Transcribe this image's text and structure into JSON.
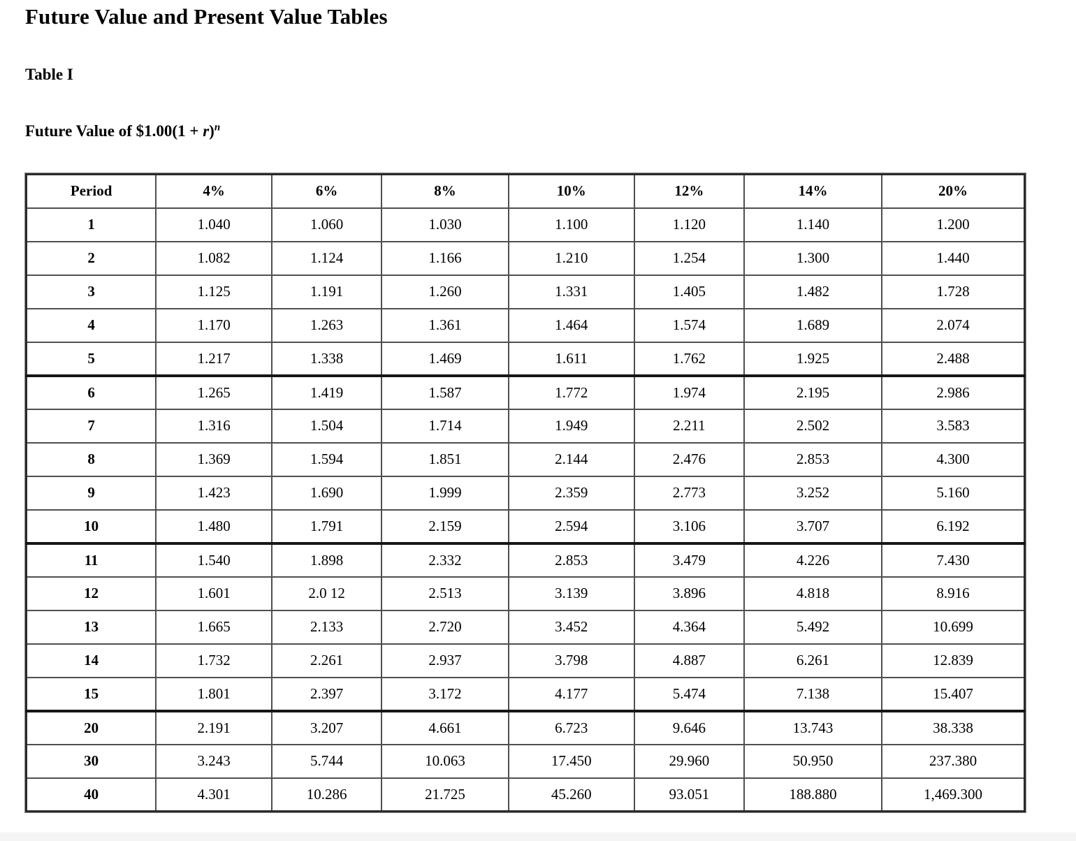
{
  "page": {
    "title": "Future Value and Present Value Tables",
    "table_label": "Table I",
    "formula": {
      "prefix": "Future Value of $1.00(1 + ",
      "variable": "r",
      "suffix": ")",
      "exponent": "n"
    }
  },
  "table": {
    "columns": [
      "Period",
      "4%",
      "6%",
      "8%",
      "10%",
      "12%",
      "14%",
      "20%"
    ],
    "rows": [
      {
        "period": "1",
        "values": [
          "1.040",
          "1.060",
          "1.030",
          "1.100",
          "1.120",
          "1.140",
          "1.200"
        ]
      },
      {
        "period": "2",
        "values": [
          "1.082",
          "1.124",
          "1.166",
          "1.210",
          "1.254",
          "1.300",
          "1.440"
        ]
      },
      {
        "period": "3",
        "values": [
          "1.125",
          "1.191",
          "1.260",
          "1.331",
          "1.405",
          "1.482",
          "1.728"
        ]
      },
      {
        "period": "4",
        "values": [
          "1.170",
          "1.263",
          "1.361",
          "1.464",
          "1.574",
          "1.689",
          "2.074"
        ]
      },
      {
        "period": "5",
        "values": [
          "1.217",
          "1.338",
          "1.469",
          "1.611",
          "1.762",
          "1.925",
          "2.488"
        ]
      },
      {
        "period": "6",
        "values": [
          "1.265",
          "1.419",
          "1.587",
          "1.772",
          "1.974",
          "2.195",
          "2.986"
        ]
      },
      {
        "period": "7",
        "values": [
          "1.316",
          "1.504",
          "1.714",
          "1.949",
          "2.211",
          "2.502",
          "3.583"
        ]
      },
      {
        "period": "8",
        "values": [
          "1.369",
          "1.594",
          "1.851",
          "2.144",
          "2.476",
          "2.853",
          "4.300"
        ]
      },
      {
        "period": "9",
        "values": [
          "1.423",
          "1.690",
          "1.999",
          "2.359",
          "2.773",
          "3.252",
          "5.160"
        ]
      },
      {
        "period": "10",
        "values": [
          "1.480",
          "1.791",
          "2.159",
          "2.594",
          "3.106",
          "3.707",
          "6.192"
        ]
      },
      {
        "period": "11",
        "values": [
          "1.540",
          "1.898",
          "2.332",
          "2.853",
          "3.479",
          "4.226",
          "7.430"
        ]
      },
      {
        "period": "12",
        "values": [
          "1.601",
          "2.0 12",
          "2.513",
          "3.139",
          "3.896",
          "4.818",
          "8.916"
        ]
      },
      {
        "period": "13",
        "values": [
          "1.665",
          "2.133",
          "2.720",
          "3.452",
          "4.364",
          "5.492",
          "10.699"
        ]
      },
      {
        "period": "14",
        "values": [
          "1.732",
          "2.261",
          "2.937",
          "3.798",
          "4.887",
          "6.261",
          "12.839"
        ]
      },
      {
        "period": "15",
        "values": [
          "1.801",
          "2.397",
          "3.172",
          "4.177",
          "5.474",
          "7.138",
          "15.407"
        ]
      },
      {
        "period": "20",
        "values": [
          "2.191",
          "3.207",
          "4.661",
          "6.723",
          "9.646",
          "13.743",
          "38.338"
        ]
      },
      {
        "period": "30",
        "values": [
          "3.243",
          "5.744",
          "10.063",
          "17.450",
          "29.960",
          "50.950",
          "237.380"
        ]
      },
      {
        "period": "40",
        "values": [
          "4.301",
          "10.286",
          "21.725",
          "45.260",
          "93.051",
          "188.880",
          "1,469.300"
        ]
      }
    ],
    "group_start_periods": [
      "6",
      "11",
      "20"
    ]
  }
}
